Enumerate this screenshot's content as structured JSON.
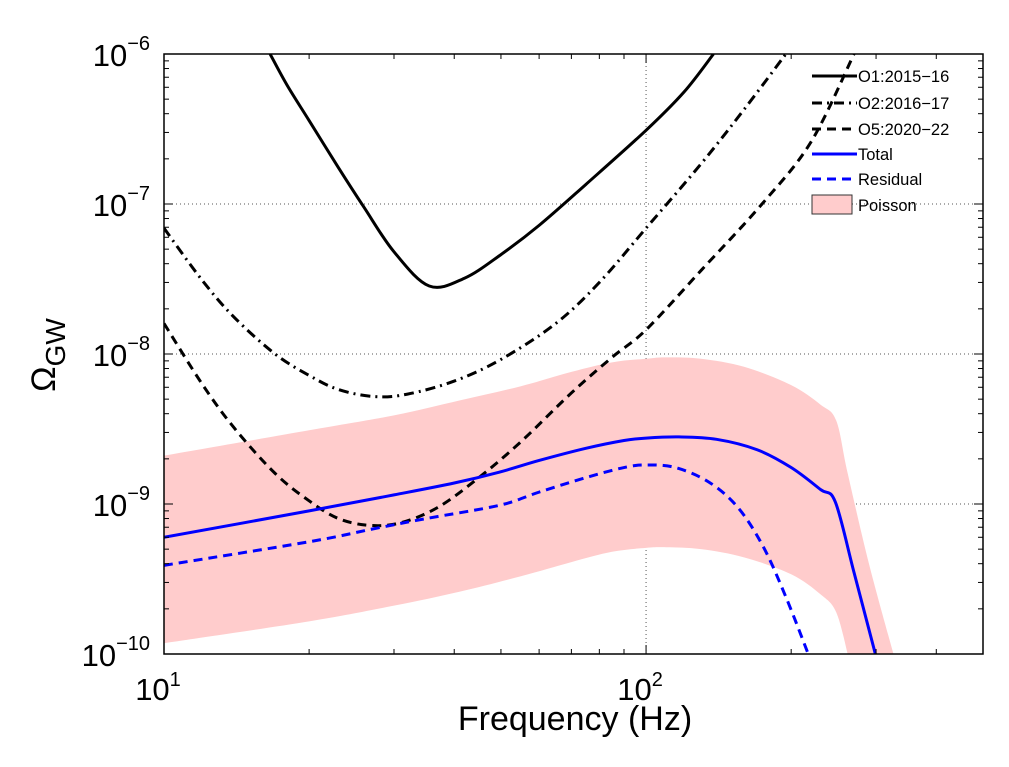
{
  "chart_data": {
    "type": "line",
    "title": "",
    "xlabel": "Frequency (Hz)",
    "ylabel": "Ω",
    "ylabel_subscript": "GW",
    "xscale": "log",
    "yscale": "log",
    "xlim": [
      10,
      500
    ],
    "ylim": [
      1e-10,
      1e-06
    ],
    "grid": true,
    "grid_style": "dotted, major decades only",
    "x_ticks": [
      {
        "value": 10,
        "base": "10",
        "exp": "1"
      },
      {
        "value": 100,
        "base": "10",
        "exp": "2"
      }
    ],
    "y_ticks": [
      {
        "value": 1e-10,
        "base": "10",
        "exp": "−10"
      },
      {
        "value": 1e-09,
        "base": "10",
        "exp": "−9"
      },
      {
        "value": 1e-08,
        "base": "10",
        "exp": "−8"
      },
      {
        "value": 1e-07,
        "base": "10",
        "exp": "−7"
      },
      {
        "value": 1e-06,
        "base": "10",
        "exp": "−6"
      }
    ],
    "legend_position": "top-right",
    "series": [
      {
        "name": "O1:2015−16",
        "kind": "line",
        "color": "#000000",
        "dash": "solid",
        "x": [
          16.6,
          18,
          20,
          23,
          26,
          30,
          35.5,
          42,
          50,
          60,
          75,
          100,
          120,
          138
        ],
        "y": [
          1e-06,
          6.2e-07,
          3.6e-07,
          1.75e-07,
          9.5e-08,
          4.8e-08,
          2.84e-08,
          3.2e-08,
          4.6e-08,
          7.2e-08,
          1.35e-07,
          3.1e-07,
          5.6e-07,
          1e-06
        ]
      },
      {
        "name": "O2:2016−17",
        "kind": "line",
        "color": "#000000",
        "dash": "dashdot",
        "x": [
          10,
          12,
          14,
          17,
          20,
          23,
          27.3,
          32,
          40,
          50,
          65,
          80,
          100,
          130,
          160,
          195
        ],
        "y": [
          6.9e-08,
          3.1e-08,
          1.75e-08,
          1e-08,
          7.2e-09,
          5.8e-09,
          5.2e-09,
          5.4e-09,
          6.6e-09,
          9.2e-09,
          1.6e-08,
          3e-08,
          6.9e-08,
          1.85e-07,
          4.3e-07,
          1e-06
        ]
      },
      {
        "name": "O5:2020−22",
        "kind": "line",
        "color": "#000000",
        "dash": "dashed",
        "x": [
          10,
          12,
          14,
          17,
          20,
          23,
          26.7,
          31,
          37,
          45,
          55,
          70,
          85,
          100,
          130,
          174,
          220,
          270
        ],
        "y": [
          1.6e-08,
          6.3e-09,
          3.2e-09,
          1.6e-09,
          1.05e-09,
          8e-10,
          7.2e-10,
          7.5e-10,
          9.5e-10,
          1.5e-09,
          2.6e-09,
          5.5e-09,
          9.5e-09,
          1.45e-08,
          3.6e-08,
          1e-07,
          2.6e-07,
          1e-06
        ]
      },
      {
        "name": "Total",
        "kind": "line",
        "color": "#0000ff",
        "dash": "solid",
        "x": [
          10,
          20,
          30,
          40,
          49.6,
          60,
          75,
          90,
          100,
          117,
          140,
          170,
          200,
          230,
          247,
          270,
          299
        ],
        "y": [
          6e-10,
          9e-10,
          1.15e-09,
          1.38e-09,
          1.63e-09,
          1.95e-09,
          2.35e-09,
          2.65e-09,
          2.75e-09,
          2.8e-09,
          2.7e-09,
          2.3e-09,
          1.75e-09,
          1.25e-09,
          1.03e-09,
          3.5e-10,
          1e-10
        ]
      },
      {
        "name": "Residual",
        "kind": "line",
        "color": "#0000ff",
        "dash": "dashed",
        "x": [
          10,
          20,
          27,
          35,
          49.6,
          60,
          75,
          90,
          100,
          115,
          135,
          155,
          175,
          195,
          217
        ],
        "y": [
          3.9e-10,
          5.6e-10,
          6.8e-10,
          8e-10,
          9.8e-10,
          1.2e-09,
          1.5e-09,
          1.75e-09,
          1.82e-09,
          1.75e-09,
          1.4e-09,
          9.5e-10,
          5.2e-10,
          2.4e-10,
          1e-10
        ]
      },
      {
        "name": "Poisson",
        "kind": "band",
        "color": "#ffcccc",
        "edge_color": "#333333",
        "x": [
          10,
          20,
          30,
          41,
          55,
          70,
          85,
          100,
          110,
          130,
          160,
          200,
          230,
          248,
          262,
          290,
          326
        ],
        "upper": [
          2.1e-09,
          3.1e-09,
          3.9e-09,
          4.9e-09,
          6.1e-09,
          7.6e-09,
          8.8e-09,
          9.3e-09,
          9.5e-09,
          9.3e-09,
          8.2e-09,
          6.2e-09,
          4.6e-09,
          3.6e-09,
          1.6e-09,
          4e-10,
          1e-10
        ],
        "lower": [
          1.18e-10,
          1.65e-10,
          2.1e-10,
          2.6e-10,
          3.3e-10,
          4.1e-10,
          4.8e-10,
          5.1e-10,
          5.15e-10,
          5e-10,
          4.4e-10,
          3.4e-10,
          2.5e-10,
          1.9e-10,
          1e-10,
          null,
          null
        ]
      }
    ]
  }
}
